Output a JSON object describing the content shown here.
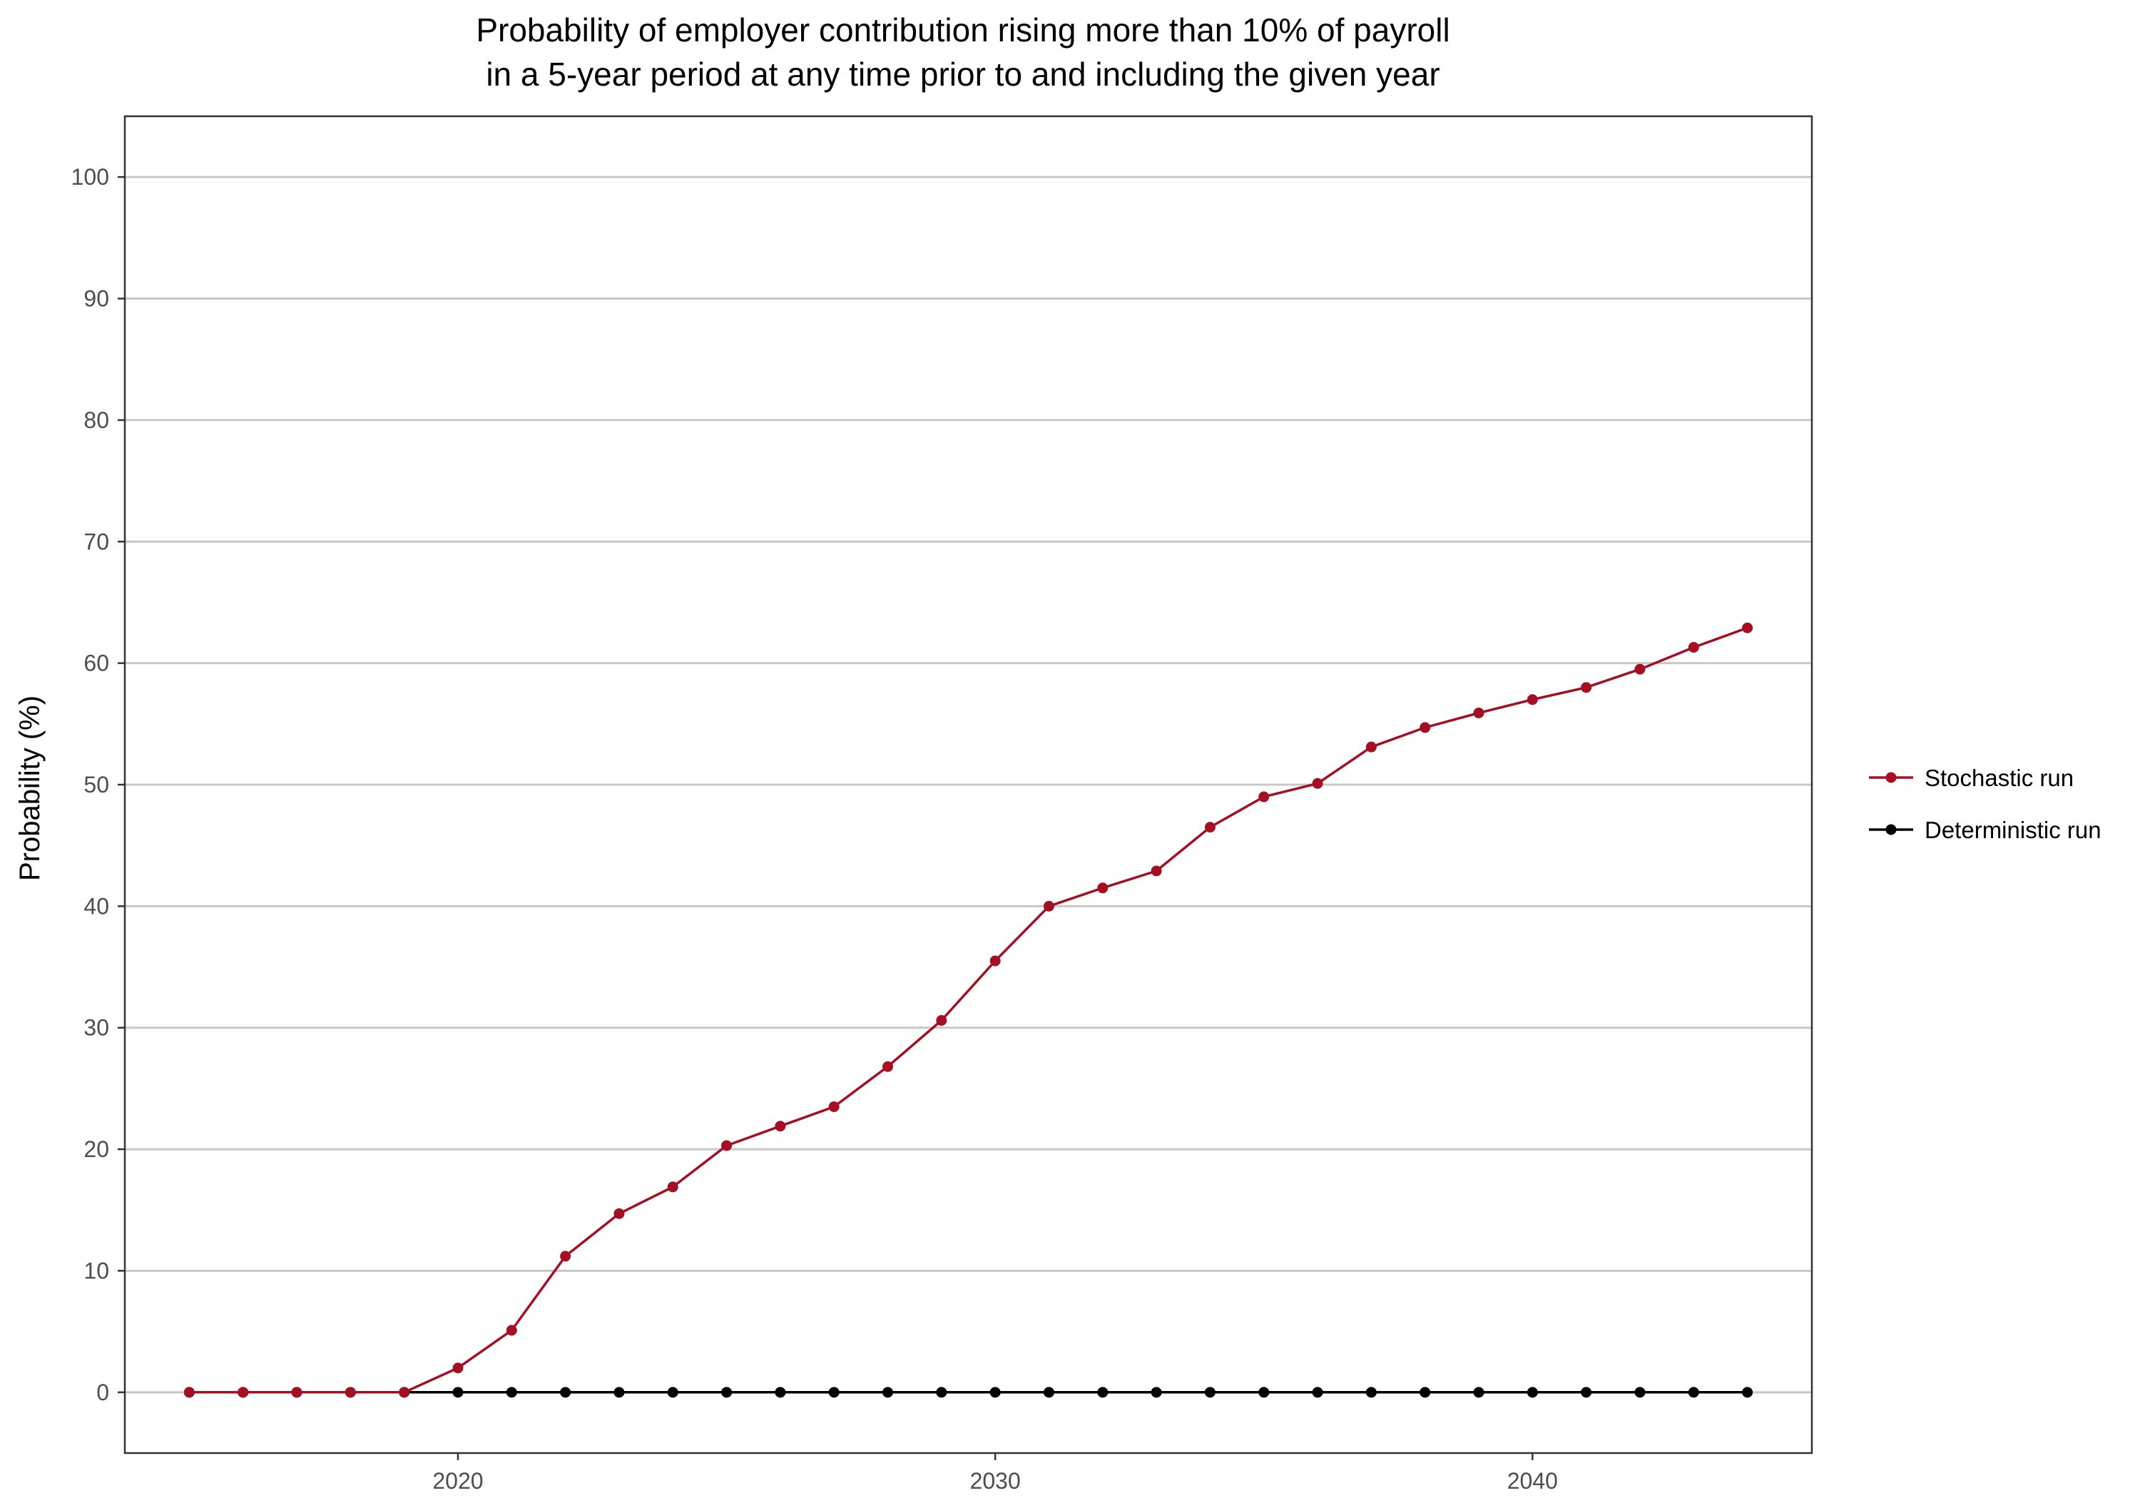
{
  "chart_data": {
    "type": "line",
    "title": [
      "Probability of employer contribution rising more than 10% of payroll",
      "in a 5-year period at any time prior to and including the given year"
    ],
    "xlabel": "",
    "ylabel": "Probability (%)",
    "xlim": [
      2013.8,
      2045.2
    ],
    "ylim": [
      -5,
      105
    ],
    "xticks": [
      2020,
      2030,
      2040
    ],
    "yticks": [
      0,
      10,
      20,
      30,
      40,
      50,
      60,
      70,
      80,
      90,
      100
    ],
    "grid": "horizontal",
    "legend_position": "right",
    "x": [
      2015,
      2016,
      2017,
      2018,
      2019,
      2020,
      2021,
      2022,
      2023,
      2024,
      2025,
      2026,
      2027,
      2028,
      2029,
      2030,
      2031,
      2032,
      2033,
      2034,
      2035,
      2036,
      2037,
      2038,
      2039,
      2040,
      2041,
      2042,
      2043,
      2044
    ],
    "series": [
      {
        "name": "Stochastic run",
        "color": "#a50f24",
        "values": [
          0,
          0,
          0,
          0,
          0,
          2.0,
          5.1,
          11.2,
          14.7,
          16.9,
          20.3,
          21.9,
          23.5,
          26.8,
          30.6,
          35.5,
          40.0,
          41.5,
          42.9,
          46.5,
          49.0,
          50.1,
          53.1,
          54.7,
          55.9,
          57.0,
          58.0,
          59.5,
          61.3,
          62.9
        ]
      },
      {
        "name": "Deterministic run",
        "color": "#000000",
        "values": [
          0,
          0,
          0,
          0,
          0,
          0,
          0,
          0,
          0,
          0,
          0,
          0,
          0,
          0,
          0,
          0,
          0,
          0,
          0,
          0,
          0,
          0,
          0,
          0,
          0,
          0,
          0,
          0,
          0,
          0
        ]
      }
    ]
  }
}
